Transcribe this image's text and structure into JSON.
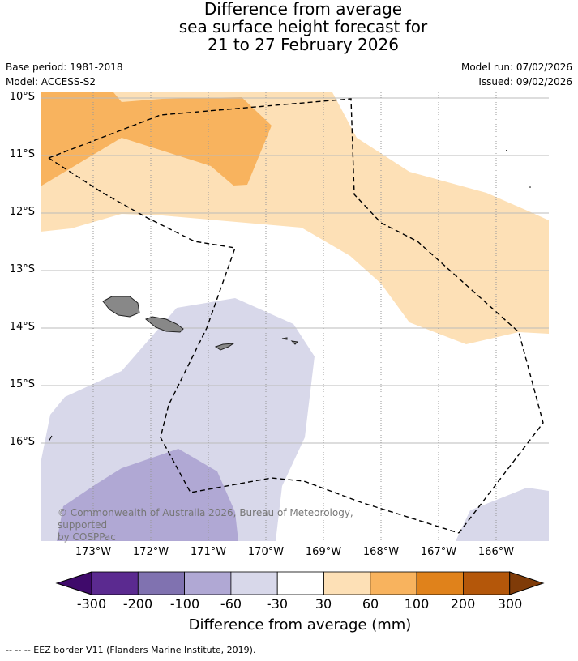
{
  "title": {
    "line1": "Difference from average",
    "line2": "sea surface height forecast for",
    "line3": "21 to 27 February 2026"
  },
  "meta": {
    "base_period": "Base period: 1981-2018",
    "model": "Model: ACCESS-S2",
    "model_run": "Model run: 07/02/2026",
    "issued": "Issued: 09/02/2026"
  },
  "map": {
    "lat_labels": [
      "10°S",
      "11°S",
      "12°S",
      "13°S",
      "14°S",
      "15°S",
      "16°S"
    ],
    "lon_labels": [
      "173°W",
      "172°W",
      "171°W",
      "170°W",
      "169°W",
      "168°W",
      "167°W",
      "166°W"
    ],
    "credit_line1": "© Commonwealth of Australia 2026, Bureau of Meteorology, supported",
    "credit_line2": "by COSPPac"
  },
  "colorbar": {
    "title": "Difference from average (mm)",
    "labels": [
      "-300",
      "-200",
      "-100",
      "-60",
      "-30",
      "30",
      "60",
      "100",
      "200",
      "300"
    ],
    "colors": [
      "#3f0a6b",
      "#5b2a90",
      "#8072b0",
      "#b0a8d4",
      "#d8d8ea",
      "#ffffff",
      "#fde0b6",
      "#f8b35e",
      "#e0821b",
      "#b4570a",
      "#7f3b08"
    ]
  },
  "footnote": "--  --  -- EEZ border V11 (Flanders Marine Institute, 2019)."
}
